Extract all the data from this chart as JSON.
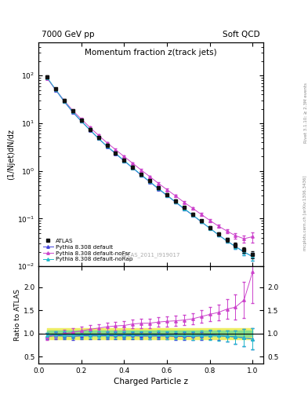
{
  "title_main": "Momentum fraction z(track jets)",
  "top_left_label": "7000 GeV pp",
  "top_right_label": "Soft QCD",
  "ylabel_main": "(1/Njet)dN/dz",
  "ylabel_ratio": "Ratio to ATLAS",
  "xlabel": "Charged Particle z",
  "watermark": "ATLAS_2011_I919017",
  "right_label_top": "Rivet 3.1.10; ≥ 2.3M events",
  "right_label_bot": "mcplots.cern.ch [arXiv:1306.3436]",
  "z_values": [
    0.04,
    0.08,
    0.12,
    0.16,
    0.2,
    0.24,
    0.28,
    0.32,
    0.36,
    0.4,
    0.44,
    0.48,
    0.52,
    0.56,
    0.6,
    0.64,
    0.68,
    0.72,
    0.76,
    0.8,
    0.84,
    0.88,
    0.92,
    0.96,
    1.0
  ],
  "atlas_y": [
    95.0,
    52.0,
    30.0,
    18.0,
    11.5,
    7.5,
    5.0,
    3.4,
    2.4,
    1.7,
    1.2,
    0.85,
    0.62,
    0.44,
    0.32,
    0.235,
    0.17,
    0.125,
    0.09,
    0.065,
    0.048,
    0.036,
    0.028,
    0.022,
    0.018
  ],
  "atlas_yerr": [
    5.0,
    3.0,
    1.8,
    1.1,
    0.7,
    0.5,
    0.3,
    0.2,
    0.14,
    0.1,
    0.07,
    0.05,
    0.038,
    0.027,
    0.019,
    0.014,
    0.011,
    0.008,
    0.006,
    0.005,
    0.004,
    0.003,
    0.003,
    0.003,
    0.003
  ],
  "py_default_y": [
    90.0,
    50.0,
    28.5,
    17.0,
    11.0,
    7.2,
    4.8,
    3.25,
    2.3,
    1.62,
    1.15,
    0.81,
    0.59,
    0.42,
    0.305,
    0.222,
    0.16,
    0.118,
    0.086,
    0.063,
    0.046,
    0.034,
    0.026,
    0.02,
    0.016
  ],
  "py_default_yerr": [
    4.0,
    2.5,
    1.5,
    0.9,
    0.6,
    0.38,
    0.25,
    0.17,
    0.12,
    0.09,
    0.06,
    0.045,
    0.033,
    0.024,
    0.017,
    0.013,
    0.01,
    0.007,
    0.005,
    0.004,
    0.003,
    0.003,
    0.003,
    0.003,
    0.003
  ],
  "py_noFsr_y": [
    88.0,
    50.5,
    30.0,
    18.5,
    12.2,
    8.2,
    5.6,
    3.9,
    2.8,
    2.0,
    1.45,
    1.04,
    0.76,
    0.55,
    0.405,
    0.3,
    0.22,
    0.165,
    0.123,
    0.092,
    0.07,
    0.055,
    0.044,
    0.038,
    0.042
  ],
  "py_noFsr_yerr": [
    4.0,
    2.5,
    1.5,
    0.95,
    0.65,
    0.43,
    0.3,
    0.2,
    0.15,
    0.11,
    0.08,
    0.058,
    0.043,
    0.032,
    0.024,
    0.018,
    0.014,
    0.011,
    0.009,
    0.007,
    0.006,
    0.006,
    0.006,
    0.007,
    0.01
  ],
  "py_noRap_y": [
    91.0,
    51.0,
    29.0,
    17.5,
    11.2,
    7.3,
    4.85,
    3.3,
    2.35,
    1.65,
    1.17,
    0.83,
    0.6,
    0.43,
    0.31,
    0.226,
    0.163,
    0.12,
    0.087,
    0.063,
    0.046,
    0.034,
    0.026,
    0.02,
    0.016
  ],
  "py_noRap_yerr": [
    4.0,
    2.5,
    1.5,
    0.9,
    0.6,
    0.38,
    0.25,
    0.17,
    0.12,
    0.09,
    0.065,
    0.046,
    0.034,
    0.025,
    0.018,
    0.013,
    0.01,
    0.008,
    0.006,
    0.005,
    0.004,
    0.003,
    0.003,
    0.003,
    0.003
  ],
  "atlas_band_inner": 0.06,
  "atlas_band_outer": 0.12,
  "color_default": "#4444dd",
  "color_noFsr": "#cc44cc",
  "color_noRap": "#22bbcc",
  "color_atlas": "#111111",
  "color_band_inner": "#88dd88",
  "color_band_outer": "#eeee66",
  "ylim_main": [
    0.01,
    500
  ],
  "ylim_ratio": [
    0.35,
    2.45
  ],
  "xlim": [
    0.0,
    1.05
  ],
  "ratio_yticks": [
    0.5,
    1.0,
    1.5,
    2.0
  ]
}
